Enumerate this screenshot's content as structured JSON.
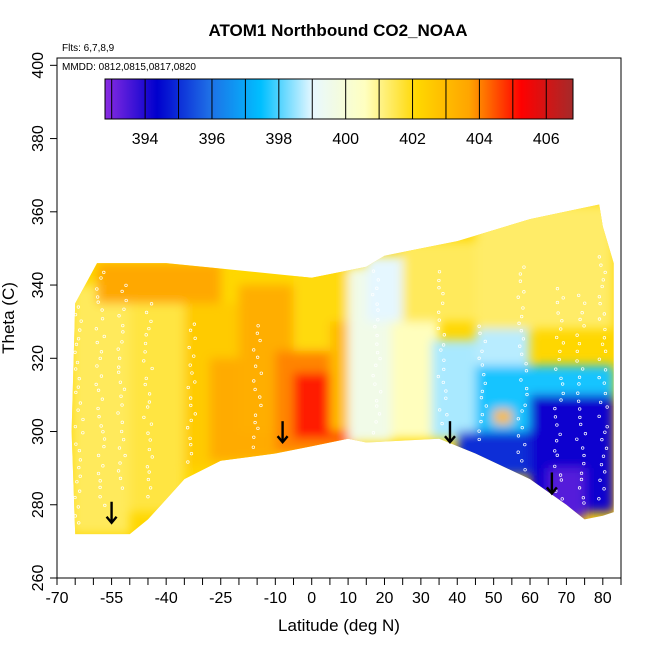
{
  "chart_data": {
    "type": "heatmap",
    "title": "ATOM1 Northbound CO2_NOAA",
    "notes": [
      "Flts: 6,7,8,9",
      "MMDD: 0812,0815,0817,0820"
    ],
    "xlabel": "Latitude (deg N)",
    "ylabel": "Theta (C)",
    "xlim": [
      -70,
      85
    ],
    "ylim": [
      260,
      402
    ],
    "xticks": [
      "-70",
      "-55",
      "-40",
      "-25",
      "-10",
      "0",
      "10",
      "20",
      "30",
      "40",
      "50",
      "60",
      "70",
      "80"
    ],
    "xtick_values": [
      -70,
      -55,
      -40,
      -25,
      -10,
      0,
      10,
      20,
      30,
      40,
      50,
      60,
      70,
      80
    ],
    "yticks": [
      "260",
      "280",
      "300",
      "320",
      "340",
      "360",
      "380",
      "400"
    ],
    "ytick_values": [
      260,
      280,
      300,
      320,
      340,
      360,
      380,
      400
    ],
    "colorbar": {
      "min": 392.8,
      "max": 406.8,
      "ticks": [
        "394",
        "396",
        "398",
        "400",
        "402",
        "404",
        "406"
      ],
      "tick_values": [
        394,
        396,
        398,
        400,
        402,
        404,
        406
      ],
      "colors": [
        "#8a2be2",
        "#0000cd",
        "#1e6ee6",
        "#00bfff",
        "#e8f8ff",
        "#ffffc0",
        "#ffd700",
        "#ffa500",
        "#ff0000",
        "#a52a2a"
      ]
    },
    "boundary": {
      "top": [
        [
          -65,
          335
        ],
        [
          -59,
          346
        ],
        [
          -40,
          346
        ],
        [
          -20,
          344
        ],
        [
          0,
          342
        ],
        [
          15,
          345
        ],
        [
          20,
          348
        ],
        [
          40,
          352
        ],
        [
          60,
          358
        ],
        [
          79,
          362
        ],
        [
          80,
          356
        ],
        [
          83,
          346
        ],
        [
          83,
          322
        ]
      ],
      "bottom": [
        [
          83,
          278
        ],
        [
          80,
          277
        ],
        [
          75,
          276
        ],
        [
          70,
          280
        ],
        [
          60,
          287
        ],
        [
          45,
          294
        ],
        [
          35,
          298
        ],
        [
          15,
          297
        ],
        [
          10,
          298
        ],
        [
          0,
          296
        ],
        [
          -10,
          294
        ],
        [
          -25,
          292
        ],
        [
          -35,
          287
        ],
        [
          -45,
          276
        ],
        [
          -50,
          272
        ],
        [
          -65,
          272
        ],
        [
          -66,
          300
        ]
      ]
    },
    "regions": [
      {
        "lat": [
          -66,
          -50
        ],
        "theta": [
          272,
          340
        ],
        "value": 401.4
      },
      {
        "lat": [
          -50,
          -35
        ],
        "theta": [
          278,
          342
        ],
        "value": 401.6
      },
      {
        "lat": [
          -59,
          -25
        ],
        "theta": [
          335,
          346
        ],
        "value": 403.6
      },
      {
        "lat": [
          -35,
          -20
        ],
        "theta": [
          290,
          335
        ],
        "value": 402.5
      },
      {
        "lat": [
          -28,
          -10
        ],
        "theta": [
          292,
          320
        ],
        "value": 403.5
      },
      {
        "lat": [
          -20,
          -5
        ],
        "theta": [
          300,
          340
        ],
        "value": 403.4
      },
      {
        "lat": [
          -10,
          12
        ],
        "theta": [
          294,
          322
        ],
        "value": 404.0
      },
      {
        "lat": [
          -5,
          10
        ],
        "theta": [
          298,
          316
        ],
        "value": 405.0
      },
      {
        "lat": [
          -5,
          10
        ],
        "theta": [
          322,
          344
        ],
        "value": 402.0
      },
      {
        "lat": [
          5,
          15
        ],
        "theta": [
          300,
          330
        ],
        "value": 403.0
      },
      {
        "lat": [
          10,
          22
        ],
        "theta": [
          297,
          345
        ],
        "value": 399.6
      },
      {
        "lat": [
          15,
          28
        ],
        "theta": [
          330,
          348
        ],
        "value": 399.0
      },
      {
        "lat": [
          22,
          35
        ],
        "theta": [
          298,
          330
        ],
        "value": 400.6
      },
      {
        "lat": [
          25,
          45
        ],
        "theta": [
          330,
          352
        ],
        "value": 401.4
      },
      {
        "lat": [
          33,
          45
        ],
        "theta": [
          298,
          325
        ],
        "value": 398.6
      },
      {
        "lat": [
          45,
          83
        ],
        "theta": [
          328,
          362
        ],
        "value": 401.3
      },
      {
        "lat": [
          45,
          60
        ],
        "theta": [
          310,
          328
        ],
        "value": 398.7
      },
      {
        "lat": [
          45,
          83
        ],
        "theta": [
          300,
          318
        ],
        "value": 397.6
      },
      {
        "lat": [
          50,
          55
        ],
        "theta": [
          302,
          306
        ],
        "value": 403.0
      },
      {
        "lat": [
          40,
          60
        ],
        "theta": [
          288,
          300
        ],
        "value": 395.0
      },
      {
        "lat": [
          60,
          83
        ],
        "theta": [
          278,
          310
        ],
        "value": 394.2
      },
      {
        "lat": [
          65,
          75
        ],
        "theta": [
          276,
          290
        ],
        "value": 393.4
      }
    ],
    "arrows": [
      {
        "lat": -55,
        "theta": 277
      },
      {
        "lat": -8,
        "theta": 299
      },
      {
        "lat": 38,
        "theta": 299
      },
      {
        "lat": 66,
        "theta": 285
      }
    ]
  }
}
